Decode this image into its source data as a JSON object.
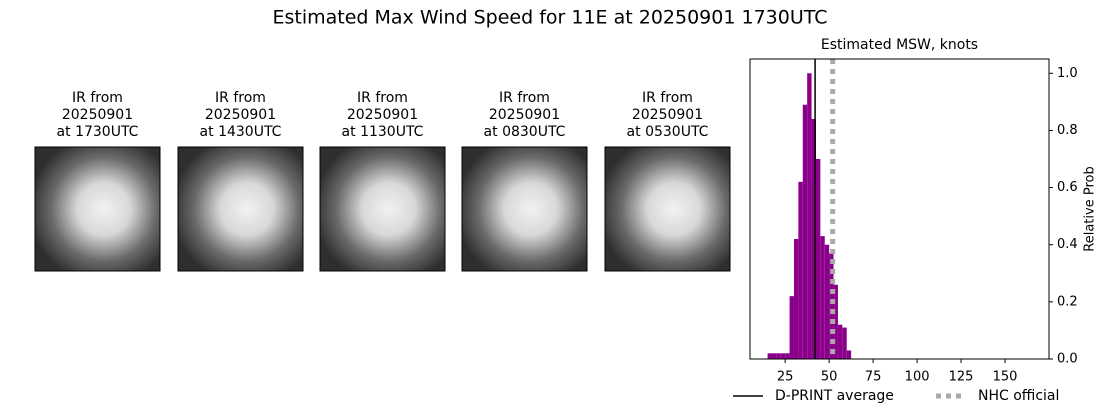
{
  "title": "Estimated Max Wind Speed for 11E at 20250901 1730UTC",
  "panels": [
    {
      "lines": [
        "IR from",
        "20250901",
        "at 1730UTC"
      ]
    },
    {
      "lines": [
        "IR from",
        "20250901",
        "at 1430UTC"
      ]
    },
    {
      "lines": [
        "IR from",
        "20250901",
        "at 1130UTC"
      ]
    },
    {
      "lines": [
        "IR from",
        "20250901",
        "at 0830UTC"
      ]
    },
    {
      "lines": [
        "IR from",
        "20250901",
        "at 0530UTC"
      ]
    }
  ],
  "chart_data": {
    "type": "histogram",
    "title": "Estimated MSW, knots",
    "ylabel": "Relative Prob",
    "bins": [
      15,
      17.5,
      20,
      22.5,
      25,
      27.5,
      30,
      32.5,
      35,
      37.5,
      40,
      42.5,
      45,
      47.5,
      50,
      52.5,
      55,
      57.5,
      60,
      62.5
    ],
    "values": [
      0.02,
      0.02,
      0.02,
      0.02,
      0.02,
      0.22,
      0.42,
      0.62,
      0.89,
      1.0,
      0.84,
      0.7,
      0.43,
      0.4,
      0.37,
      0.26,
      0.12,
      0.11,
      0.03
    ],
    "color": "#8b008b",
    "xlim": [
      5,
      175
    ],
    "xticks": [
      25,
      50,
      75,
      100,
      125,
      150
    ],
    "ylim": [
      0,
      1.05
    ],
    "yticks": [
      {
        "value": 0,
        "label": "0.0"
      },
      {
        "value": 0.2,
        "label": "0.2"
      },
      {
        "value": 0.4,
        "label": "0.4"
      },
      {
        "value": 0.6,
        "label": "0.6"
      },
      {
        "value": 0.8,
        "label": "0.8"
      },
      {
        "value": 1,
        "label": "1.0"
      }
    ],
    "lines": [
      {
        "name": "D-PRINT average",
        "value": 42,
        "color": "#000000",
        "style": "solid"
      },
      {
        "name": "NHC official",
        "value": 52,
        "color": "#aaaaaa",
        "style": "dotted"
      }
    ]
  }
}
